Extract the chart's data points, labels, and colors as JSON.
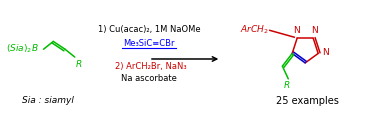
{
  "bg_color": "#ffffff",
  "figsize": [
    3.78,
    1.17
  ],
  "dpi": 100,
  "reactant_color": "#00bb00",
  "R_color": "#00bb00",
  "sia_label": "Sia : siamyl",
  "examples_label": "25 examples",
  "condition1": "1) Cu(acac)₂, 1M NaOMe",
  "condition1_color": "#000000",
  "condition2": "Me₃SiC≡CBr",
  "condition2_color": "#0000ff",
  "condition3": "2) ArCH₂Br, NaN₃",
  "condition3_color": "#cc0000",
  "condition4": "Na ascorbate",
  "condition4_color": "#000000",
  "product_ArCH2_color": "#cc0000",
  "product_ring_color": "#cc0000",
  "product_double_bond_color": "#0000cc",
  "product_vinyl_color": "#00bb00",
  "product_R_color": "#00bb00",
  "arrow_color": "#000000",
  "line_color": "#0000ff"
}
